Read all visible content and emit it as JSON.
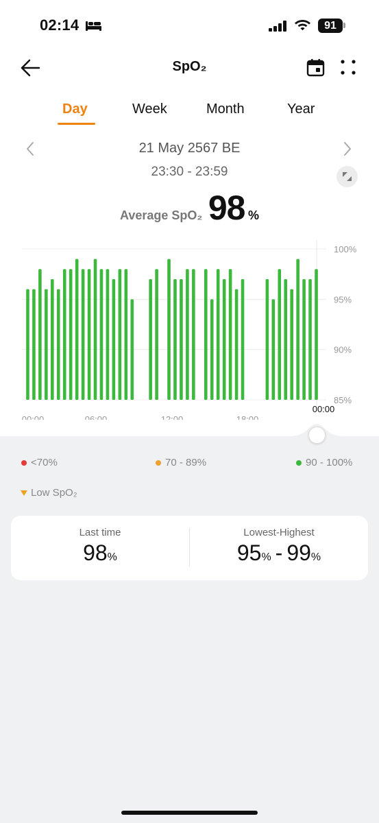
{
  "status_bar": {
    "time": "02:14",
    "battery": "91"
  },
  "header": {
    "title": "SpO₂"
  },
  "tabs": [
    {
      "label": "Day",
      "active": true
    },
    {
      "label": "Week",
      "active": false
    },
    {
      "label": "Month",
      "active": false
    },
    {
      "label": "Year",
      "active": false
    }
  ],
  "date_nav": {
    "date": "21 May 2567 BE",
    "time_range": "23:30 - 23:59"
  },
  "average": {
    "label": "Average SpO₂",
    "value": "98",
    "unit": "%"
  },
  "chart_data": {
    "type": "bar",
    "y_tick_labels": [
      "100%",
      "95%",
      "90%",
      "85%"
    ],
    "y_ticks": [
      100,
      95,
      90,
      85
    ],
    "ylim": [
      85,
      100
    ],
    "x_tick_labels": [
      "00:00",
      "06:00",
      "12:00",
      "18:00"
    ],
    "x_end_label": "00:00",
    "bar_color": "#3cb83c",
    "series": [
      {
        "values": [
          96,
          96,
          98,
          96,
          97,
          96,
          98,
          98,
          99,
          98,
          98,
          99,
          98,
          98,
          97,
          98,
          98,
          95,
          null,
          null,
          97,
          98,
          null,
          99,
          97,
          97,
          98,
          98,
          null,
          98,
          95,
          98,
          97,
          98,
          96,
          97,
          null,
          null,
          null,
          97,
          95,
          98,
          97,
          96,
          99,
          97,
          97,
          98
        ]
      }
    ]
  },
  "legend": [
    {
      "label": "<70%",
      "color": "#e83a3a"
    },
    {
      "label": "70 - 89%",
      "color": "#f0a030"
    },
    {
      "label": "90 - 100%",
      "color": "#3cb83c"
    }
  ],
  "low_marker": {
    "label": "Low SpO₂",
    "color": "#f0a020"
  },
  "stats": {
    "last_time": {
      "label": "Last time",
      "value": "98",
      "unit": "%"
    },
    "range": {
      "label": "Lowest-Highest",
      "low": "95",
      "high": "99",
      "unit": "%"
    }
  }
}
